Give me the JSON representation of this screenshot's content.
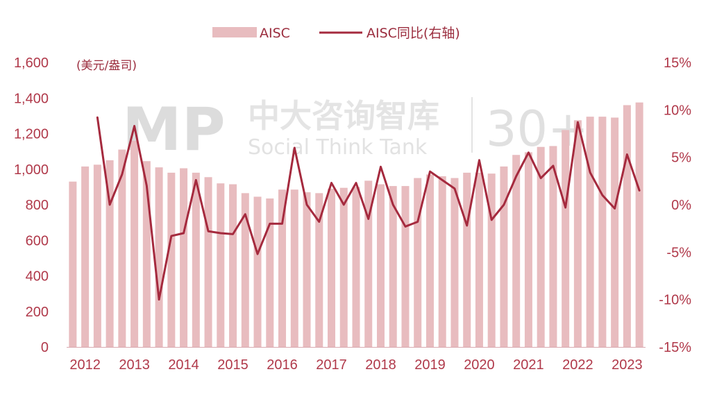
{
  "chart_data": {
    "type": "bar",
    "unit_label": "(美元/盎司)",
    "legend": [
      {
        "label": "AISC",
        "kind": "bar",
        "color": "#e8bcbf"
      },
      {
        "label": "AISC同比(右轴)",
        "kind": "line",
        "color": "#a52a3e"
      }
    ],
    "y_left": {
      "min": 0,
      "max": 1600,
      "ticks": [
        "0",
        "200",
        "400",
        "600",
        "800",
        "1,000",
        "1,200",
        "1,400",
        "1,600"
      ]
    },
    "y_right": {
      "min": -15,
      "max": 15,
      "ticks": [
        "-15%",
        "-10%",
        "-5%",
        "0%",
        "5%",
        "10%",
        "15%"
      ]
    },
    "x_labels": [
      {
        "label": "2012",
        "start_index": 0
      },
      {
        "label": "2013",
        "start_index": 4
      },
      {
        "label": "2014",
        "start_index": 8
      },
      {
        "label": "2015",
        "start_index": 12
      },
      {
        "label": "2016",
        "start_index": 16
      },
      {
        "label": "2017",
        "start_index": 20
      },
      {
        "label": "2018",
        "start_index": 24
      },
      {
        "label": "2019",
        "start_index": 28
      },
      {
        "label": "2020",
        "start_index": 32
      },
      {
        "label": "2021",
        "start_index": 36
      },
      {
        "label": "2022",
        "start_index": 40
      },
      {
        "label": "2023",
        "start_index": 44
      }
    ],
    "series": [
      {
        "name": "AISC",
        "type": "bar",
        "axis": "left",
        "values": [
          930,
          1015,
          1025,
          1050,
          1110,
          1160,
          1045,
          1010,
          980,
          1005,
          980,
          955,
          920,
          915,
          865,
          845,
          835,
          885,
          885,
          870,
          865,
          890,
          895,
          900,
          935,
          915,
          905,
          905,
          950,
          970,
          960,
          950,
          980,
          980,
          975,
          1015,
          1080,
          1095,
          1125,
          1130,
          1220,
          1275,
          1295,
          1295,
          1290,
          1360,
          1375
        ]
      },
      {
        "name": "AISC同比(右轴)",
        "type": "line",
        "axis": "right",
        "values": [
          9.2,
          0.0,
          3.2,
          8.3,
          2.0,
          -10.0,
          -3.3,
          -3.0,
          2.6,
          -2.8,
          -3.0,
          -3.1,
          -1.0,
          -5.2,
          -2.0,
          -2.0,
          6.0,
          0.0,
          -1.8,
          2.3,
          0.0,
          2.3,
          -1.5,
          4.0,
          0.0,
          -2.3,
          -1.8,
          3.5,
          2.6,
          1.7,
          -2.2,
          4.7,
          -1.6,
          0.0,
          3.0,
          5.5,
          2.8,
          4.1,
          -0.3,
          8.7,
          3.4,
          1.0,
          -0.4,
          5.3,
          1.5
        ]
      }
    ]
  },
  "watermark": {
    "logo": "MP",
    "title": "中大咨询智库",
    "subtitle": "Social Think Tank",
    "badge": "30+"
  }
}
